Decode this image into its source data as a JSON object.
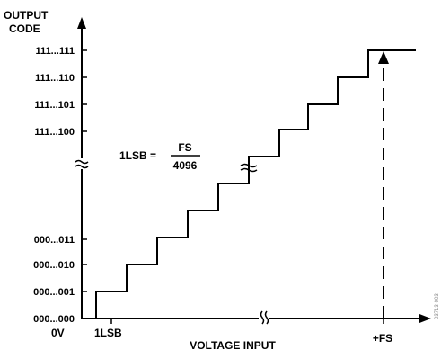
{
  "diagram": {
    "y_axis_label_line1": "OUTPUT",
    "y_axis_label_line2": "CODE",
    "x_axis_label": "VOLTAGE INPUT",
    "y_codes_top": [
      "111...111",
      "111...110",
      "111...101",
      "111...100"
    ],
    "y_codes_bottom": [
      "000...011",
      "000...010",
      "000...001",
      "000...000"
    ],
    "x_label_zero": "0V",
    "x_label_lsb": "1LSB",
    "x_label_fs": "+FS",
    "formula_lhs": "1LSB =",
    "formula_numerator": "FS",
    "formula_denominator": "4096",
    "side_code": "03713-003",
    "colors": {
      "line": "#000000",
      "background": "#ffffff"
    }
  }
}
